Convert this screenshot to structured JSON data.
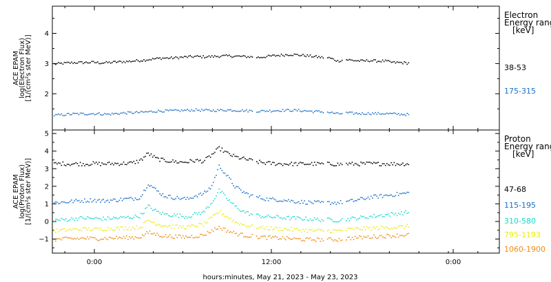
{
  "chart_data": {
    "type": "scatter",
    "xlabel": "hours:minutes, May 21, 2023 - May 23, 2023",
    "x_ticks": [
      "0:00",
      "12:00",
      "0:00"
    ],
    "panels": [
      {
        "name": "electron",
        "ylabel_lines": [
          "ACE EPAM",
          "log(Electron Flux)",
          "[1/(cm²s ster MeV)]"
        ],
        "ylim": [
          0.8,
          4.9
        ],
        "yticks": [
          2,
          3,
          4
        ],
        "legend_lines": [
          "Electron",
          "Energy range",
          "[keV]"
        ],
        "series": [
          {
            "name": "38-53",
            "color": "#000000",
            "base": 3.05,
            "hourly": [
              3.0,
              3.02,
              3.04,
              3.05,
              3.05,
              3.06,
              3.04,
              3.05,
              3.07,
              3.08,
              3.1,
              3.12,
              3.15,
              3.18,
              3.2,
              3.2,
              3.22,
              3.24,
              3.25,
              3.24,
              3.25,
              3.26,
              3.27,
              3.26,
              3.25,
              3.24,
              3.22,
              3.25,
              3.28,
              3.3,
              3.32,
              3.3,
              3.28,
              3.25,
              3.22,
              3.2,
              3.1,
              3.15,
              3.12,
              3.1,
              3.12,
              3.1,
              3.1,
              3.05,
              3.05,
              3.03
            ]
          },
          {
            "name": "175-315",
            "color": "#1a6fc4",
            "base": 1.35,
            "hourly": [
              1.3,
              1.32,
              1.34,
              1.35,
              1.35,
              1.36,
              1.35,
              1.34,
              1.36,
              1.38,
              1.39,
              1.4,
              1.42,
              1.44,
              1.45,
              1.45,
              1.46,
              1.47,
              1.48,
              1.47,
              1.46,
              1.47,
              1.48,
              1.47,
              1.46,
              1.45,
              1.44,
              1.45,
              1.46,
              1.47,
              1.47,
              1.46,
              1.45,
              1.43,
              1.42,
              1.4,
              1.35,
              1.38,
              1.37,
              1.36,
              1.37,
              1.36,
              1.36,
              1.35,
              1.34,
              1.33
            ]
          }
        ]
      },
      {
        "name": "proton",
        "ylabel_lines": [
          "ACE EPAM",
          "log(Proton Flux)",
          "[1/(cm²s ster MeV)]"
        ],
        "ylim": [
          -1.8,
          5.2
        ],
        "yticks": [
          -1,
          0,
          1,
          2,
          3,
          4,
          5
        ],
        "legend_lines": [
          "Proton",
          "Energy range",
          "[keV]"
        ],
        "series": [
          {
            "name": "47-68",
            "color": "#000000",
            "hourly": [
              3.3,
              3.32,
              3.3,
              3.31,
              3.3,
              3.32,
              3.3,
              3.31,
              3.32,
              3.33,
              3.35,
              3.5,
              3.9,
              3.6,
              3.5,
              3.45,
              3.4,
              3.42,
              3.5,
              3.45,
              3.8,
              4.2,
              3.9,
              3.7,
              3.6,
              3.5,
              3.4,
              3.35,
              3.32,
              3.3,
              3.3,
              3.3,
              3.31,
              3.3,
              3.3,
              3.3,
              3.28,
              3.3,
              3.3,
              3.3,
              3.32,
              3.3,
              3.32,
              3.3,
              3.3,
              3.32
            ]
          },
          {
            "name": "115-195",
            "color": "#1a6fc4",
            "hourly": [
              1.1,
              1.12,
              1.15,
              1.2,
              1.22,
              1.25,
              1.2,
              1.22,
              1.25,
              1.3,
              1.32,
              1.4,
              2.2,
              1.8,
              1.5,
              1.4,
              1.35,
              1.3,
              1.5,
              1.6,
              2.0,
              3.2,
              2.6,
              2.0,
              1.7,
              1.5,
              1.4,
              1.3,
              1.28,
              1.25,
              1.2,
              1.15,
              1.12,
              1.1,
              1.08,
              1.1,
              1.1,
              1.15,
              1.2,
              1.3,
              1.4,
              1.45,
              1.5,
              1.55,
              1.6,
              1.65
            ]
          },
          {
            "name": "310-580",
            "color": "#18d8cc",
            "hourly": [
              0.1,
              0.12,
              0.15,
              0.2,
              0.22,
              0.2,
              0.18,
              0.2,
              0.22,
              0.25,
              0.28,
              0.35,
              0.9,
              0.6,
              0.45,
              0.4,
              0.35,
              0.3,
              0.45,
              0.55,
              1.1,
              1.8,
              1.3,
              0.9,
              0.6,
              0.45,
              0.35,
              0.3,
              0.28,
              0.25,
              0.22,
              0.2,
              0.18,
              0.15,
              0.12,
              0.12,
              0.1,
              0.15,
              0.2,
              0.25,
              0.3,
              0.35,
              0.4,
              0.45,
              0.5,
              0.55
            ]
          },
          {
            "name": "795-1193",
            "color": "#e8ea16",
            "hourly": [
              -0.5,
              -0.48,
              -0.45,
              -0.42,
              -0.4,
              -0.42,
              -0.4,
              -0.38,
              -0.36,
              -0.35,
              -0.33,
              -0.3,
              0.1,
              -0.1,
              -0.2,
              -0.25,
              -0.28,
              -0.3,
              -0.2,
              -0.15,
              0.2,
              0.6,
              0.3,
              0.0,
              -0.15,
              -0.25,
              -0.3,
              -0.35,
              -0.38,
              -0.4,
              -0.42,
              -0.45,
              -0.48,
              -0.5,
              -0.5,
              -0.5,
              -0.5,
              -0.45,
              -0.4,
              -0.38,
              -0.36,
              -0.34,
              -0.32,
              -0.3,
              -0.28,
              -0.25
            ]
          },
          {
            "name": "1060-1900",
            "color": "#f08a12",
            "hourly": [
              -1.0,
              -0.98,
              -0.95,
              -0.95,
              -0.92,
              -0.95,
              -0.93,
              -0.92,
              -0.9,
              -0.9,
              -0.88,
              -0.85,
              -0.6,
              -0.7,
              -0.8,
              -0.82,
              -0.85,
              -0.85,
              -0.8,
              -0.75,
              -0.5,
              -0.3,
              -0.5,
              -0.65,
              -0.75,
              -0.8,
              -0.85,
              -0.88,
              -0.9,
              -0.92,
              -0.95,
              -0.98,
              -1.0,
              -1.0,
              -1.0,
              -1.0,
              -1.0,
              -0.95,
              -0.9,
              -0.88,
              -0.85,
              -0.82,
              -0.8,
              -0.78,
              -0.75,
              -0.72
            ]
          }
        ]
      }
    ]
  }
}
